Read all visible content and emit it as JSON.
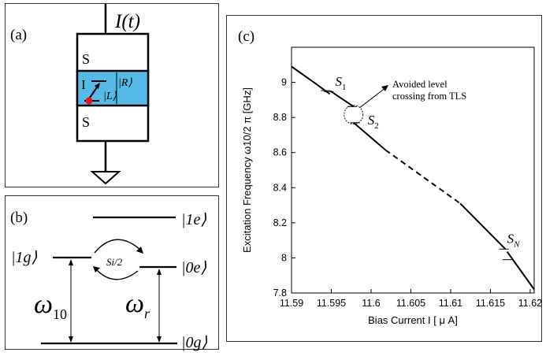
{
  "panel_a": {
    "label": "(a)",
    "current_label": "I(t)",
    "top_layer": "S",
    "barrier_layer": "I",
    "state_R": "|R⟩",
    "state_L": "|L⟩",
    "bottom_layer": "S",
    "colors": {
      "barrier": "#55bbe6",
      "defect": "#e8141c"
    }
  },
  "panel_b": {
    "label": "(b)",
    "levels": {
      "e1": "|1e⟩",
      "g1": "|1g⟩",
      "e0": "|0e⟩",
      "g0": "|0g⟩"
    },
    "coupling": "Si/2",
    "omega_10": "ω10",
    "omega_r": "ωr"
  },
  "panel_c": {
    "label": "(c)",
    "annotation": "Avoided level crossing from TLS",
    "annotation_line1": "Avoided level",
    "annotation_line2": "crossing from TLS",
    "splitting_labels": [
      "S1",
      "S2",
      "SN"
    ]
  },
  "chart_data": {
    "type": "line",
    "xlabel": "Bias Current I [ μ A]",
    "ylabel": "Excitation Frequency  ω10/2 π [GHz]",
    "xlim": [
      11.59,
      11.6205
    ],
    "ylim": [
      7.8,
      9.2
    ],
    "xticks": [
      "11.59",
      "11.595",
      "11.6",
      "11.605",
      "11.61",
      "11.615",
      "11.62"
    ],
    "yticks": [
      "7.8",
      "8",
      "8.2",
      "8.4",
      "8.6",
      "8.8",
      "9"
    ],
    "series": [
      {
        "style": "solid",
        "x": [
          11.59,
          11.593,
          11.5948
        ],
        "y": [
          9.09,
          8.994,
          8.934
        ]
      },
      {
        "style": "solid",
        "x": [
          11.5949,
          11.5978
        ],
        "y": [
          8.95,
          8.862
        ]
      },
      {
        "style": "solid",
        "x": [
          11.5978,
          11.6018
        ],
        "y": [
          8.77,
          8.615
        ]
      },
      {
        "style": "dashed",
        "x": [
          11.6018,
          11.6112
        ],
        "y": [
          8.615,
          8.31
        ]
      },
      {
        "style": "solid",
        "x": [
          11.6112,
          11.6169
        ],
        "y": [
          8.31,
          8.05
        ]
      },
      {
        "style": "solid",
        "x": [
          11.6171,
          11.6205
        ],
        "y": [
          8.035,
          7.82
        ]
      }
    ],
    "gaps": [
      {
        "name": "S1",
        "x": 11.5945,
        "y_low": 8.947,
        "y_high": 8.953
      },
      {
        "name": "S2",
        "x": 11.5978,
        "y_low": 8.77,
        "y_high": 8.862
      },
      {
        "name": "SN",
        "x": 11.6169,
        "y_low": 7.99,
        "y_high": 8.05
      }
    ]
  }
}
